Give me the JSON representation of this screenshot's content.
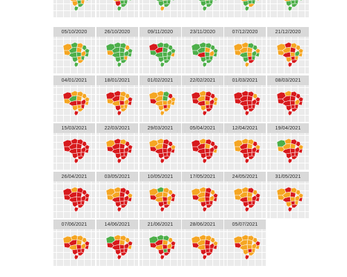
{
  "colors": {
    "green": "#4daf4a",
    "yellow": "#f5a623",
    "red": "#d7191c",
    "panel_bg": "#ebebeb",
    "header_bg": "#d9d9d9",
    "border": "#ffffff"
  },
  "top_row_partial": [
    {
      "label": "",
      "states": [
        "g",
        "g",
        "y",
        "g",
        "r",
        "g",
        "g",
        "y",
        "g",
        "g",
        "y",
        "g",
        "g",
        "y",
        "y",
        "g",
        "g"
      ]
    },
    {
      "label": "",
      "states": [
        "g",
        "r",
        "g",
        "g",
        "y",
        "g",
        "r",
        "g",
        "g",
        "g",
        "y",
        "g",
        "g",
        "g",
        "r",
        "g",
        "g"
      ]
    },
    {
      "label": "",
      "states": [
        "y",
        "y",
        "g",
        "y",
        "g",
        "g",
        "g",
        "y",
        "g",
        "g",
        "g",
        "y",
        "g",
        "g",
        "g",
        "g",
        "y"
      ]
    },
    {
      "label": "",
      "states": [
        "y",
        "g",
        "g",
        "y",
        "g",
        "g",
        "g",
        "r",
        "g",
        "g",
        "g",
        "y",
        "g",
        "g",
        "g",
        "g",
        "g"
      ]
    },
    {
      "label": "",
      "states": [
        "y",
        "y",
        "g",
        "y",
        "g",
        "y",
        "g",
        "g",
        "y",
        "g",
        "y",
        "g",
        "g",
        "g",
        "g",
        "y",
        "g"
      ]
    },
    {
      "label": "",
      "states": [
        "y",
        "g",
        "g",
        "g",
        "g",
        "g",
        "y",
        "g",
        "g",
        "g",
        "y",
        "g",
        "g",
        "g",
        "g",
        "g",
        "g"
      ]
    }
  ],
  "panels": [
    {
      "date": "05/10/2020",
      "states": [
        "y",
        "g",
        "y",
        "g",
        "y",
        "g",
        "g",
        "y",
        "g",
        "y",
        "g",
        "g",
        "y",
        "g",
        "g",
        "y",
        "g"
      ]
    },
    {
      "date": "26/10/2020",
      "states": [
        "g",
        "g",
        "g",
        "g",
        "g",
        "y",
        "g",
        "g",
        "g",
        "y",
        "g",
        "g",
        "g",
        "y",
        "g",
        "g",
        "g"
      ]
    },
    {
      "date": "09/11/2020",
      "states": [
        "r",
        "g",
        "g",
        "r",
        "g",
        "g",
        "g",
        "g",
        "y",
        "g",
        "g",
        "g",
        "g",
        "g",
        "g",
        "g",
        "g"
      ]
    },
    {
      "date": "23/11/2020",
      "states": [
        "g",
        "g",
        "g",
        "g",
        "y",
        "g",
        "g",
        "y",
        "g",
        "g",
        "r",
        "g",
        "g",
        "g",
        "g",
        "g",
        "g"
      ]
    },
    {
      "date": "07/12/2020",
      "states": [
        "y",
        "y",
        "g",
        "y",
        "y",
        "g",
        "y",
        "g",
        "g",
        "y",
        "g",
        "y",
        "r",
        "g",
        "g",
        "r",
        "y"
      ]
    },
    {
      "date": "21/12/2020",
      "states": [
        "y",
        "r",
        "y",
        "y",
        "r",
        "y",
        "y",
        "g",
        "y",
        "y",
        "r",
        "y",
        "r",
        "y",
        "y",
        "r",
        "r"
      ]
    },
    {
      "date": "04/01/2021",
      "states": [
        "r",
        "y",
        "y",
        "g",
        "y",
        "y",
        "y",
        "r",
        "y",
        "y",
        "r",
        "r",
        "y",
        "r",
        "y",
        "y",
        "r"
      ]
    },
    {
      "date": "18/01/2021",
      "states": [
        "r",
        "r",
        "y",
        "r",
        "y",
        "y",
        "r",
        "y",
        "r",
        "y",
        "y",
        "r",
        "y",
        "y",
        "r",
        "y",
        "r"
      ]
    },
    {
      "date": "01/02/2021",
      "states": [
        "y",
        "y",
        "g",
        "y",
        "g",
        "r",
        "y",
        "y",
        "y",
        "r",
        "y",
        "y",
        "r",
        "y",
        "y",
        "y",
        "y"
      ]
    },
    {
      "date": "22/02/2021",
      "states": [
        "r",
        "y",
        "r",
        "y",
        "r",
        "r",
        "y",
        "r",
        "y",
        "r",
        "r",
        "y",
        "r",
        "r",
        "y",
        "r",
        "r"
      ]
    },
    {
      "date": "01/03/2021",
      "states": [
        "r",
        "r",
        "r",
        "r",
        "r",
        "y",
        "r",
        "r",
        "r",
        "r",
        "r",
        "r",
        "r",
        "r",
        "r",
        "r",
        "r"
      ]
    },
    {
      "date": "08/03/2021",
      "states": [
        "r",
        "y",
        "r",
        "r",
        "r",
        "r",
        "r",
        "y",
        "r",
        "r",
        "r",
        "r",
        "r",
        "r",
        "r",
        "r",
        "r"
      ]
    },
    {
      "date": "15/03/2021",
      "states": [
        "r",
        "r",
        "r",
        "r",
        "r",
        "r",
        "r",
        "r",
        "r",
        "r",
        "r",
        "r",
        "r",
        "r",
        "r",
        "r",
        "r"
      ]
    },
    {
      "date": "22/03/2021",
      "states": [
        "y",
        "r",
        "y",
        "r",
        "r",
        "r",
        "r",
        "r",
        "r",
        "r",
        "r",
        "r",
        "r",
        "r",
        "r",
        "r",
        "r"
      ]
    },
    {
      "date": "29/03/2021",
      "states": [
        "y",
        "y",
        "r",
        "y",
        "r",
        "r",
        "y",
        "r",
        "r",
        "r",
        "r",
        "r",
        "r",
        "r",
        "r",
        "r",
        "r"
      ]
    },
    {
      "date": "05/04/2021",
      "states": [
        "r",
        "y",
        "r",
        "r",
        "y",
        "r",
        "r",
        "r",
        "y",
        "r",
        "r",
        "r",
        "r",
        "r",
        "r",
        "r",
        "r"
      ]
    },
    {
      "date": "12/04/2021",
      "states": [
        "y",
        "y",
        "y",
        "r",
        "y",
        "r",
        "y",
        "r",
        "r",
        "y",
        "r",
        "r",
        "r",
        "r",
        "r",
        "r",
        "r"
      ]
    },
    {
      "date": "19/04/2021",
      "states": [
        "g",
        "y",
        "r",
        "y",
        "y",
        "r",
        "y",
        "r",
        "r",
        "y",
        "r",
        "r",
        "r",
        "r",
        "r",
        "r",
        "r"
      ]
    },
    {
      "date": "26/04/2021",
      "states": [
        "r",
        "y",
        "r",
        "r",
        "r",
        "r",
        "r",
        "r",
        "r",
        "r",
        "r",
        "r",
        "r",
        "r",
        "r",
        "r",
        "r"
      ]
    },
    {
      "date": "03/05/2021",
      "states": [
        "y",
        "y",
        "r",
        "y",
        "r",
        "r",
        "y",
        "r",
        "r",
        "y",
        "r",
        "r",
        "r",
        "r",
        "r",
        "r",
        "r"
      ]
    },
    {
      "date": "10/05/2021",
      "states": [
        "y",
        "g",
        "y",
        "y",
        "y",
        "y",
        "r",
        "y",
        "r",
        "r",
        "y",
        "r",
        "r",
        "y",
        "r",
        "r",
        "r"
      ]
    },
    {
      "date": "17/05/2021",
      "states": [
        "y",
        "y",
        "r",
        "y",
        "r",
        "y",
        "r",
        "y",
        "r",
        "r",
        "y",
        "r",
        "r",
        "r",
        "r",
        "r",
        "r"
      ]
    },
    {
      "date": "24/05/2021",
      "states": [
        "y",
        "y",
        "r",
        "y",
        "y",
        "y",
        "r",
        "r",
        "r",
        "y",
        "r",
        "y",
        "r",
        "r",
        "r",
        "r",
        "r"
      ]
    },
    {
      "date": "31/05/2021",
      "states": [
        "y",
        "r",
        "y",
        "y",
        "r",
        "y",
        "y",
        "y",
        "r",
        "y",
        "r",
        "y",
        "r",
        "y",
        "y",
        "r",
        "r"
      ]
    },
    {
      "date": "07/06/2021",
      "states": [
        "y",
        "y",
        "y",
        "r",
        "y",
        "y",
        "r",
        "y",
        "r",
        "r",
        "y",
        "r",
        "r",
        "r",
        "r",
        "r",
        "r"
      ]
    },
    {
      "date": "14/06/2021",
      "states": [
        "g",
        "y",
        "y",
        "r",
        "y",
        "y",
        "r",
        "r",
        "y",
        "r",
        "r",
        "r",
        "r",
        "r",
        "r",
        "r",
        "r"
      ]
    },
    {
      "date": "21/06/2021",
      "states": [
        "g",
        "g",
        "g",
        "r",
        "y",
        "y",
        "r",
        "y",
        "r",
        "r",
        "y",
        "r",
        "g",
        "r",
        "r",
        "r",
        "r"
      ]
    },
    {
      "date": "28/06/2021",
      "states": [
        "y",
        "y",
        "y",
        "y",
        "r",
        "y",
        "y",
        "r",
        "r",
        "r",
        "y",
        "r",
        "r",
        "r",
        "r",
        "r",
        "r"
      ]
    },
    {
      "date": "05/07/2021",
      "states": [
        "y",
        "y",
        "y",
        "y",
        "y",
        "y",
        "r",
        "y",
        "y",
        "r",
        "y",
        "y",
        "r",
        "y",
        "y",
        "y",
        "r"
      ]
    }
  ]
}
